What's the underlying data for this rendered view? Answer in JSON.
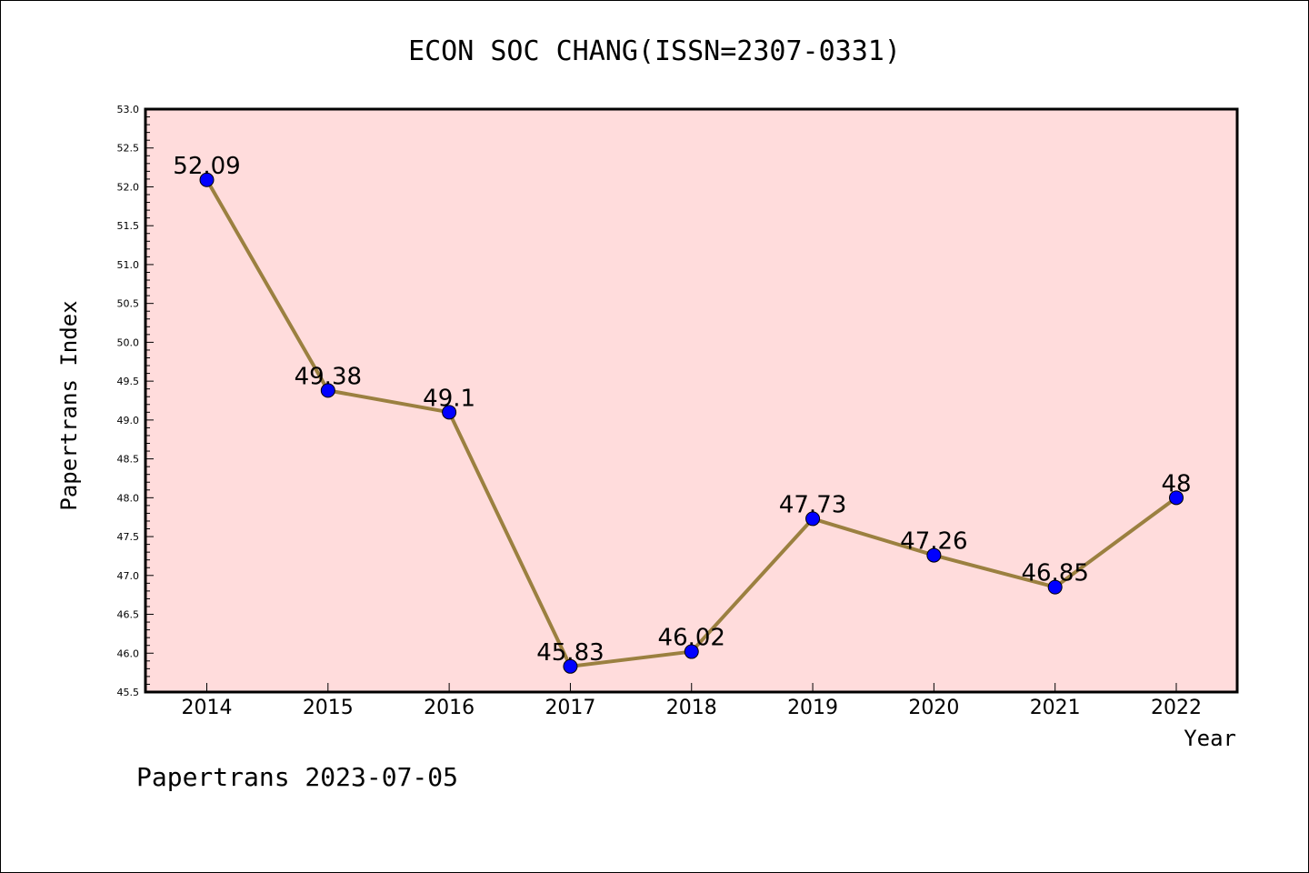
{
  "chart_data": {
    "type": "line",
    "title": "ECON SOC CHANG(ISSN=2307-0331)",
    "xlabel": "Year",
    "ylabel": "Papertrans Index",
    "categories": [
      "2014",
      "2015",
      "2016",
      "2017",
      "2018",
      "2019",
      "2020",
      "2021",
      "2022"
    ],
    "series": [
      {
        "values": [
          52.09,
          49.38,
          49.1,
          45.83,
          46.02,
          47.73,
          47.26,
          46.85,
          48
        ],
        "labels": [
          "52.09",
          "49.38",
          "49.1",
          "45.83",
          "46.02",
          "47.73",
          "47.26",
          "46.85",
          "48"
        ]
      }
    ],
    "ylim": [
      45.5,
      53.0
    ],
    "ytick_step": 0.5,
    "ytick_labels": [
      "45.5",
      "46.0",
      "46.5",
      "47.0",
      "47.5",
      "48.0",
      "48.5",
      "49.0",
      "49.5",
      "50.0",
      "50.5",
      "51.0",
      "51.5",
      "52.0",
      "52.5",
      "53.0"
    ],
    "grid": false,
    "colors": {
      "plot_background": "#ffdcdc",
      "line": "#9b8040",
      "marker": "#0000ff"
    }
  },
  "footer": "Papertrans 2023-07-05"
}
